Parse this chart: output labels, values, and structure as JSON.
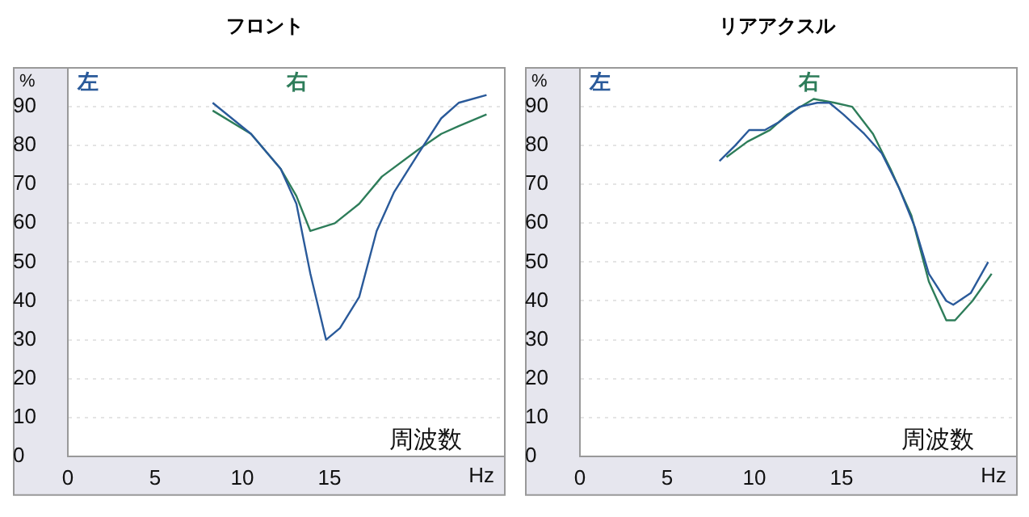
{
  "chart_data": [
    {
      "type": "line",
      "title": "フロント",
      "xlabel": "Hz",
      "ylabel": "%",
      "annotations": [
        "周波数"
      ],
      "xlim": [
        0,
        25
      ],
      "xticks": [
        0,
        5,
        10,
        15
      ],
      "ylim": [
        0,
        100
      ],
      "yticks": [
        0,
        10,
        20,
        30,
        40,
        50,
        60,
        70,
        80,
        90
      ],
      "grid": "y",
      "legend": "top left",
      "marker": "none",
      "series": [
        {
          "name": "左",
          "color": "#2a5a9a",
          "x": [
            8.3,
            10.5,
            12.2,
            13.1,
            13.9,
            14.8,
            15.6,
            16.7,
            17.7,
            18.7,
            20.1,
            21.4,
            22.4,
            24
          ],
          "values": [
            91,
            83,
            74,
            65,
            47,
            30,
            33,
            41,
            58,
            68,
            78,
            87,
            91,
            93
          ]
        },
        {
          "name": "右",
          "color": "#2e7d5a",
          "x": [
            8.3,
            10.5,
            12.2,
            13.1,
            13.9,
            15.3,
            16.7,
            18,
            20.1,
            21.4,
            22.4,
            24
          ],
          "values": [
            89,
            83,
            74,
            67,
            58,
            60,
            65,
            72,
            79,
            83,
            85,
            88
          ]
        }
      ]
    },
    {
      "type": "line",
      "title": "リアアクスル",
      "xlabel": "Hz",
      "ylabel": "%",
      "annotations": [
        "周波数"
      ],
      "xlim": [
        0,
        25
      ],
      "xticks": [
        0,
        5,
        10,
        15
      ],
      "ylim": [
        0,
        100
      ],
      "yticks": [
        0,
        10,
        20,
        30,
        40,
        50,
        60,
        70,
        80,
        90
      ],
      "grid": "y",
      "legend": "top left",
      "marker": "none",
      "series": [
        {
          "name": "左",
          "color": "#2a5a9a",
          "x": [
            8,
            8.9,
            9.7,
            10.6,
            11.4,
            12.6,
            13.6,
            14.3,
            15.1,
            16.3,
            17.3,
            18.3,
            19.2,
            20,
            21,
            21.4,
            22.4,
            23.4
          ],
          "values": [
            76,
            80,
            84,
            84,
            86,
            90,
            91,
            91,
            88,
            83,
            78,
            69,
            59,
            47,
            40,
            39,
            42,
            50
          ]
        },
        {
          "name": "右",
          "color": "#2e7d5a",
          "x": [
            8.4,
            9.6,
            10.9,
            11.9,
            13.4,
            14.6,
            15.6,
            16.8,
            17.8,
            19,
            20,
            21,
            21.5,
            22.5,
            23.6
          ],
          "values": [
            77,
            81,
            84,
            88,
            92,
            91,
            90,
            83,
            74,
            62,
            45,
            35,
            35,
            40,
            47
          ]
        }
      ]
    }
  ]
}
